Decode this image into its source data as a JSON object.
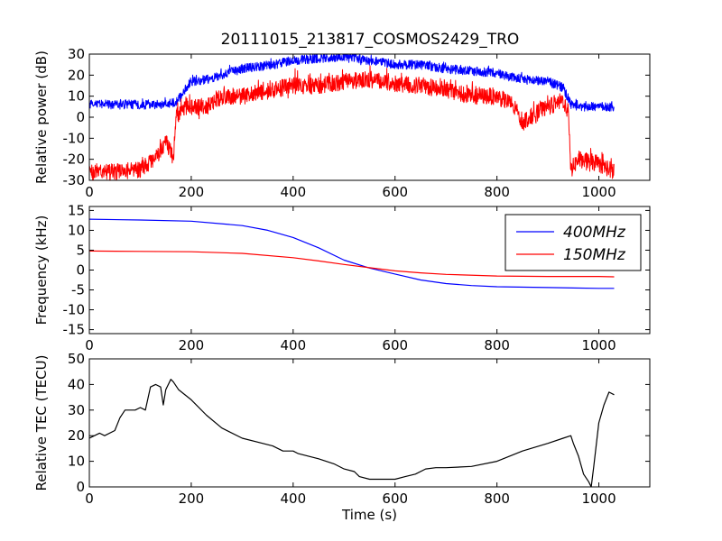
{
  "figure": {
    "title": "20111015_213817_COSMOS2429_TRO"
  },
  "chart_data": [
    {
      "type": "line",
      "title": "20111015_213817_COSMOS2429_TRO",
      "xlabel": "",
      "ylabel": "Relative power (dB)",
      "xlim": [
        0,
        1100
      ],
      "ylim": [
        -30,
        30
      ],
      "xticks": [
        0,
        200,
        400,
        600,
        800,
        1000
      ],
      "yticks": [
        -30,
        -20,
        -10,
        0,
        10,
        20,
        30
      ],
      "grid": false,
      "legend": "none",
      "noise": true,
      "series": [
        {
          "color": "#0000ff",
          "noise_amplitude": 2.2,
          "x": [
            0,
            50,
            100,
            150,
            170,
            185,
            200,
            230,
            260,
            300,
            330,
            360,
            400,
            450,
            500,
            550,
            600,
            650,
            700,
            750,
            800,
            830,
            850,
            900,
            930,
            945,
            960,
            1000,
            1030
          ],
          "y": [
            6,
            6,
            6,
            6,
            7,
            12,
            17,
            18,
            20,
            23,
            24,
            25,
            27,
            28,
            29,
            27,
            25,
            25,
            23,
            22,
            21,
            19,
            18,
            17,
            14,
            6,
            5,
            5,
            5
          ]
        },
        {
          "color": "#ff0000",
          "noise_amplitude": 4,
          "x": [
            0,
            50,
            100,
            130,
            150,
            165,
            170,
            185,
            200,
            230,
            260,
            300,
            340,
            400,
            450,
            500,
            550,
            600,
            650,
            700,
            750,
            800,
            830,
            850,
            900,
            930,
            940,
            945,
            960,
            1000,
            1030
          ],
          "y": [
            -26,
            -26,
            -25,
            -20,
            -12,
            -20,
            0,
            5,
            5,
            5,
            10,
            10,
            12,
            15,
            15,
            17,
            18,
            16,
            15,
            13,
            10,
            10,
            6,
            -2,
            5,
            8,
            2,
            -25,
            -20,
            -22,
            -26
          ]
        }
      ]
    },
    {
      "type": "line",
      "xlabel": "",
      "ylabel": "Frequency (kHz)",
      "xlim": [
        0,
        1100
      ],
      "ylim": [
        -16,
        16
      ],
      "xticks": [
        0,
        200,
        400,
        600,
        800,
        1000
      ],
      "yticks": [
        -15,
        -10,
        -5,
        0,
        5,
        10,
        15
      ],
      "grid": false,
      "legend": "top-right",
      "series": [
        {
          "name": "400MHz",
          "color": "#0000ff",
          "x": [
            0,
            100,
            200,
            300,
            350,
            400,
            450,
            500,
            550,
            600,
            650,
            700,
            750,
            800,
            900,
            1000,
            1030
          ],
          "y": [
            12.8,
            12.6,
            12.3,
            11.2,
            10.0,
            8.2,
            5.6,
            2.5,
            0.5,
            -1.0,
            -2.5,
            -3.4,
            -3.9,
            -4.2,
            -4.4,
            -4.6,
            -4.6
          ]
        },
        {
          "name": "150MHz",
          "color": "#ff0000",
          "x": [
            0,
            100,
            200,
            300,
            400,
            450,
            500,
            550,
            600,
            650,
            700,
            800,
            900,
            1000,
            1030
          ],
          "y": [
            4.8,
            4.7,
            4.6,
            4.2,
            3.1,
            2.3,
            1.4,
            0.6,
            -0.2,
            -0.7,
            -1.1,
            -1.5,
            -1.6,
            -1.6,
            -1.7
          ]
        }
      ]
    },
    {
      "type": "line",
      "xlabel": "Time (s)",
      "ylabel": "Relative TEC (TECU)",
      "xlim": [
        0,
        1100
      ],
      "ylim": [
        0,
        50
      ],
      "xticks": [
        0,
        200,
        400,
        600,
        800,
        1000
      ],
      "yticks": [
        0,
        10,
        20,
        30,
        40,
        50
      ],
      "grid": false,
      "legend": "none",
      "series": [
        {
          "color": "#000000",
          "x": [
            0,
            10,
            20,
            30,
            50,
            60,
            70,
            90,
            100,
            110,
            120,
            130,
            140,
            145,
            150,
            160,
            165,
            175,
            200,
            230,
            260,
            300,
            340,
            360,
            380,
            400,
            410,
            450,
            480,
            500,
            520,
            530,
            550,
            600,
            620,
            640,
            660,
            680,
            700,
            750,
            800,
            850,
            900,
            930,
            945,
            950,
            960,
            970,
            980,
            985,
            990,
            1000,
            1010,
            1020,
            1030
          ],
          "y": [
            19,
            20,
            21,
            20,
            22,
            27,
            30,
            30,
            31,
            30,
            39,
            40,
            39,
            32,
            38,
            42,
            41,
            38,
            34,
            28,
            23,
            19,
            17,
            16,
            14,
            14,
            13,
            11,
            9,
            7,
            6,
            4,
            3,
            3,
            4,
            5,
            7,
            7.5,
            7.5,
            8,
            10,
            14,
            17,
            19,
            20,
            17,
            12,
            5,
            2,
            0,
            8,
            25,
            32,
            37,
            36
          ]
        }
      ]
    }
  ]
}
